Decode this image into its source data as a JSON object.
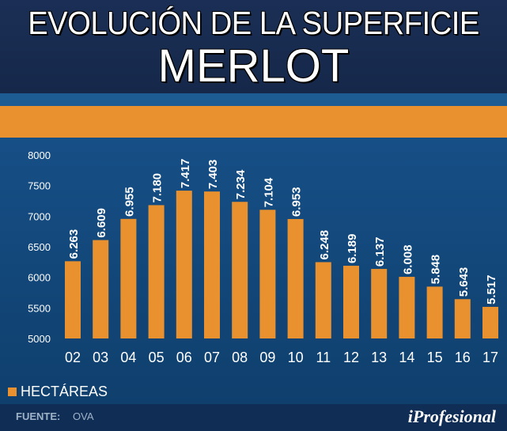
{
  "header": {
    "title_line1": "EVOLUCIÓN DE LA SUPERFICIE",
    "title_line2": "MERLOT"
  },
  "footer": {
    "source_label": "FUENTE:",
    "source_value": "OVA",
    "brand": "iProfesional"
  },
  "colors": {
    "bar": "#e8912e",
    "background": "#0f3f6d",
    "header": "#1b2f56"
  },
  "chart_data": {
    "type": "bar",
    "title": "EVOLUCIÓN DE LA SUPERFICIE MERLOT",
    "categories": [
      "02",
      "03",
      "04",
      "05",
      "06",
      "07",
      "08",
      "09",
      "10",
      "11",
      "12",
      "13",
      "14",
      "15",
      "16",
      "17"
    ],
    "values": [
      6263,
      6609,
      6955,
      7180,
      7417,
      7403,
      7234,
      7104,
      6953,
      6248,
      6189,
      6137,
      6008,
      5848,
      5643,
      5517
    ],
    "value_labels": [
      "6.263",
      "6.609",
      "6.955",
      "7.180",
      "7.417",
      "7.403",
      "7.234",
      "7.104",
      "6.953",
      "6.248",
      "6.189",
      "6.137",
      "6.008",
      "5.848",
      "5.643",
      "5.517"
    ],
    "ylim": [
      5000,
      8000
    ],
    "yticks": [
      "5000",
      "5500",
      "6000",
      "6500",
      "7000",
      "7500",
      "8000"
    ],
    "legend": [
      "HECTÁREAS"
    ],
    "legend_position": "bottom-left",
    "xlabel": "",
    "ylabel": ""
  }
}
